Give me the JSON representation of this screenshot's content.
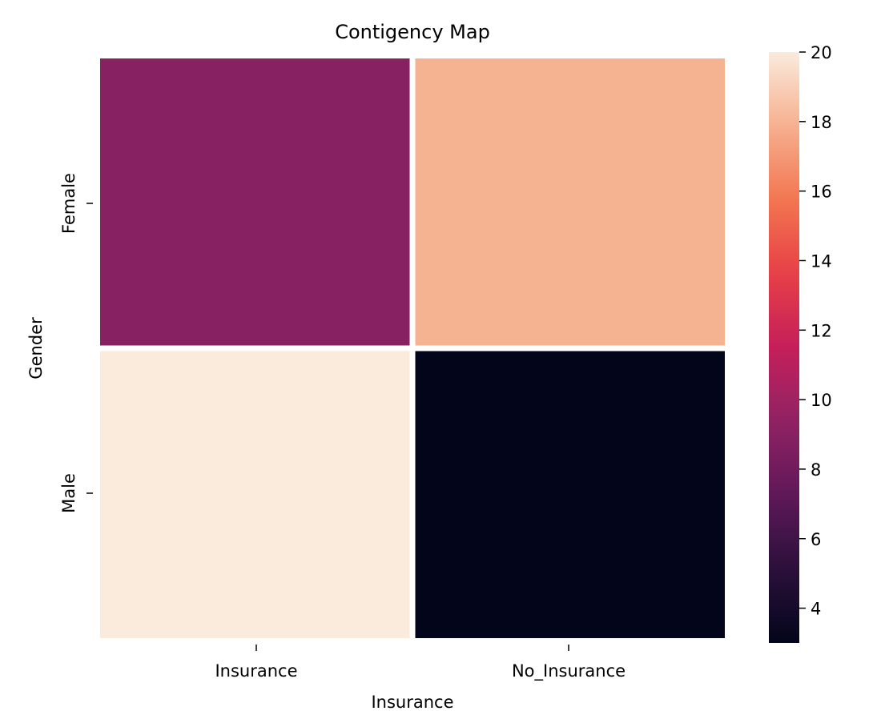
{
  "chart_data": {
    "type": "heatmap",
    "title": "Contigency Map",
    "xlabel": "Insurance",
    "ylabel": "Gender",
    "x_categories": [
      "Insurance",
      "No_Insurance"
    ],
    "y_categories": [
      "Female",
      "Male"
    ],
    "values": [
      [
        9,
        18
      ],
      [
        20,
        3
      ]
    ],
    "colorbar": {
      "range": [
        3,
        20
      ],
      "ticks": [
        4,
        6,
        8,
        10,
        12,
        14,
        16,
        18,
        20
      ],
      "colormap": "rocket"
    },
    "grid": false,
    "legend": "colorbar-right"
  }
}
